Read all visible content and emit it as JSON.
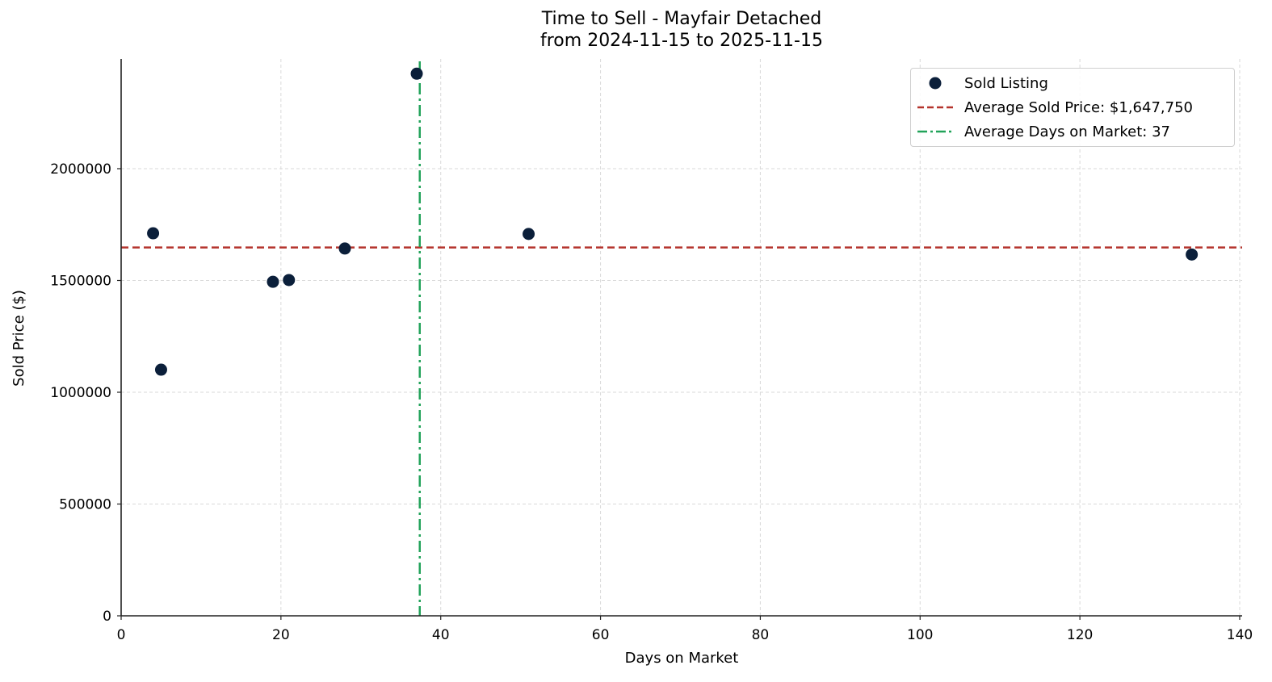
{
  "chart_data": {
    "type": "scatter",
    "title": "Time to Sell - Mayfair Detached",
    "subtitle": "from 2024-11-15 to 2025-11-15",
    "xlabel": "Days on Market",
    "ylabel": "Sold Price ($)",
    "xlim": [
      0,
      140
    ],
    "ylim": [
      0,
      2480000
    ],
    "x_ticks": [
      0,
      20,
      40,
      60,
      80,
      100,
      120,
      140
    ],
    "y_ticks": [
      0,
      500000,
      1000000,
      1500000,
      2000000
    ],
    "x_tick_labels": [
      "0",
      "20",
      "40",
      "60",
      "80",
      "100",
      "120",
      "140"
    ],
    "y_tick_labels": [
      "0",
      "500000",
      "1000000",
      "1500000",
      "2000000"
    ],
    "grid": true,
    "legend_position": "upper right",
    "series": [
      {
        "name": "Sold Listing",
        "type": "scatter",
        "color": "#0b1f3a",
        "points": [
          {
            "x": 4,
            "y": 1711000
          },
          {
            "x": 5,
            "y": 1101000
          },
          {
            "x": 19,
            "y": 1494000
          },
          {
            "x": 21,
            "y": 1502000
          },
          {
            "x": 28,
            "y": 1643000
          },
          {
            "x": 37,
            "y": 2425000
          },
          {
            "x": 51,
            "y": 1708000
          },
          {
            "x": 134,
            "y": 1616000
          }
        ]
      },
      {
        "name": "Average Sold Price: $1,647,750",
        "type": "hline",
        "value": 1647750,
        "color": "#b5332c",
        "style": "dashed"
      },
      {
        "name": "Average Days on Market: 37",
        "type": "vline",
        "value": 37.375,
        "color": "#22a35a",
        "style": "dashdot"
      }
    ]
  },
  "legend": {
    "items": [
      {
        "label": "Sold Listing"
      },
      {
        "label": "Average Sold Price: $1,647,750"
      },
      {
        "label": "Average Days on Market: 37"
      }
    ]
  }
}
